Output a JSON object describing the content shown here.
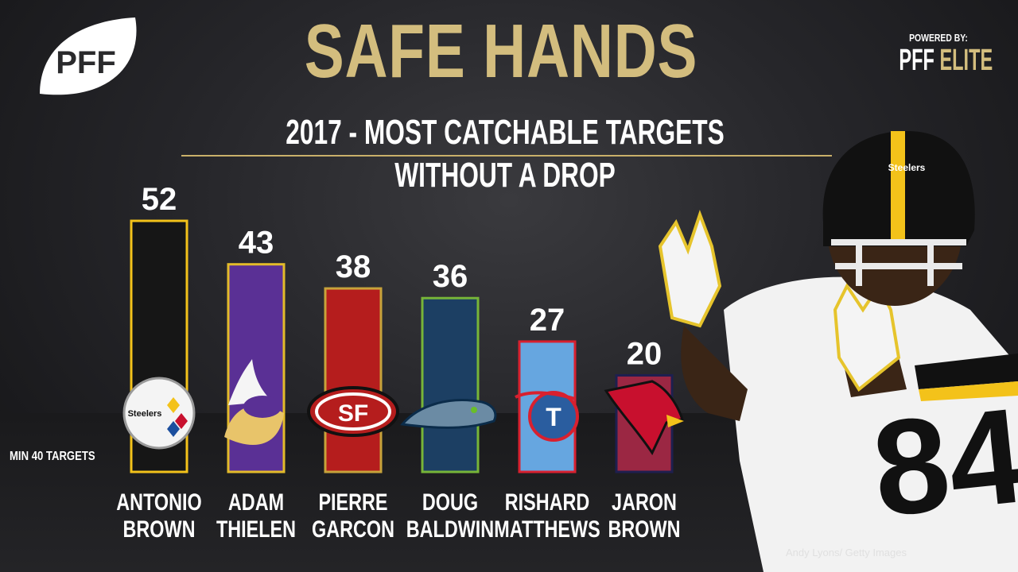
{
  "header": {
    "title": "SAFE HANDS",
    "subtitle": "2017 - MOST CATCHABLE TARGETS WITHOUT A DROP",
    "logo_text": "PFF",
    "powered_by": "POWERED BY:",
    "brand_main": "PFF",
    "brand_accent": "ELITE"
  },
  "note": "MIN 40 TARGETS",
  "credit": "Andy Lyons/ Getty Images",
  "jersey_number": "84",
  "helmet_text": "Steelers",
  "chart_data": {
    "type": "bar",
    "title": "2017 - MOST CATCHABLE TARGETS WITHOUT A DROP",
    "categories": [
      "ANTONIO BROWN",
      "ADAM THIELEN",
      "PIERRE GARCON",
      "DOUG BALDWIN",
      "RISHARD MATTHEWS",
      "JARON BROWN"
    ],
    "name_lines": [
      [
        "ANTONIO",
        "BROWN"
      ],
      [
        "ADAM",
        "THIELEN"
      ],
      [
        "PIERRE",
        "GARCON"
      ],
      [
        "DOUG",
        "BALDWIN"
      ],
      [
        "RISHARD",
        "MATTHEWS"
      ],
      [
        "JARON",
        "BROWN"
      ]
    ],
    "values": [
      52,
      43,
      38,
      36,
      27,
      20
    ],
    "teams": [
      "steelers",
      "vikings",
      "49ers",
      "seahawks",
      "titans",
      "cardinals"
    ],
    "team_logo_text": [
      "Steelers",
      "",
      "SF",
      "",
      "T",
      ""
    ],
    "bar_colors": [
      "#161616",
      "#5a3095",
      "#b51d1d",
      "#1c3f63",
      "#66a6e0",
      "#9b2743"
    ],
    "bar_borders": [
      "#f3c21a",
      "#e3bb2a",
      "#c7a33a",
      "#77b538",
      "#d8202f",
      "#1e1f4f"
    ],
    "xlabel": "",
    "ylabel": "",
    "ylim": [
      0,
      52
    ]
  }
}
